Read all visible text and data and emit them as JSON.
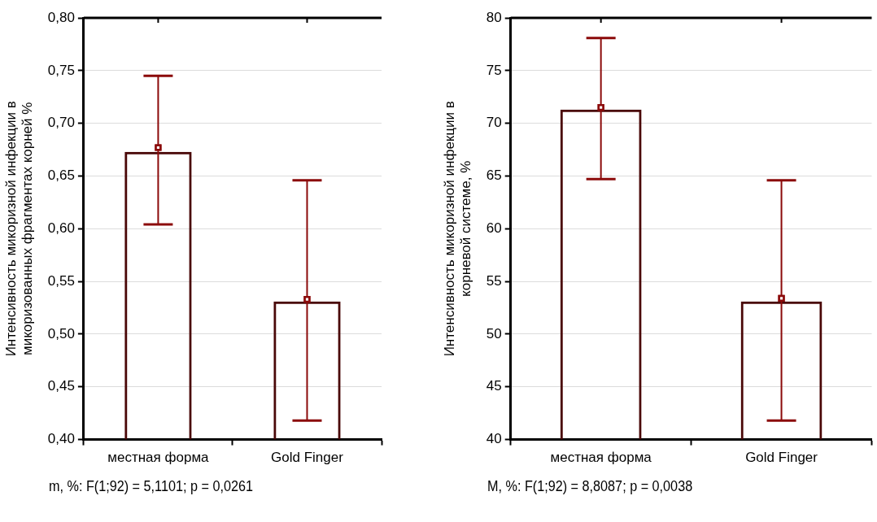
{
  "chart_data": [
    {
      "type": "bar",
      "ylabel": "Интенсивность микоризной инфекции в микоризованных фрагментах корней %",
      "categories": [
        "местная форма",
        "Gold Finger"
      ],
      "ylim": [
        0.4,
        0.8
      ],
      "yticks": [
        {
          "value": 0.4,
          "label": "0,40"
        },
        {
          "value": 0.45,
          "label": "0,45"
        },
        {
          "value": 0.5,
          "label": "0,50"
        },
        {
          "value": 0.55,
          "label": "0,55"
        },
        {
          "value": 0.6,
          "label": "0,60"
        },
        {
          "value": 0.65,
          "label": "0,65"
        },
        {
          "value": 0.7,
          "label": "0,70"
        },
        {
          "value": 0.75,
          "label": "0,75"
        },
        {
          "value": 0.8,
          "label": "0,80"
        }
      ],
      "grid": "y",
      "legend": false,
      "annotations": [
        "m, %:  F(1;92) = 5,1101; p = 0,0261"
      ],
      "series": [
        {
          "color": "#4a0808",
          "values": [
            0.673,
            0.531
          ]
        },
        {
          "type": "scatter",
          "color": "#8b0a0a",
          "marker": "square",
          "x": [
            "местная форма",
            "Gold Finger"
          ],
          "values": [
            0.677,
            0.533
          ],
          "errors": [
            [
              0.604,
              0.745
            ],
            [
              0.418,
              0.646
            ]
          ]
        }
      ]
    },
    {
      "type": "bar",
      "ylabel": "Интенсивность микоризной инфекции в корневой системе, %",
      "categories": [
        "местная форма",
        "Gold Finger"
      ],
      "ylim": [
        40,
        80
      ],
      "yticks": [
        40,
        45,
        50,
        55,
        60,
        65,
        70,
        75,
        80
      ],
      "grid": "y",
      "legend": false,
      "annotations": [
        "M, %:  F(1;92) = 8,8087; p = 0,0038"
      ],
      "series": [
        {
          "color": "#4a0808",
          "values": [
            71.3,
            53.1
          ]
        },
        {
          "type": "scatter",
          "color": "#8b0a0a",
          "marker": "square",
          "x": [
            "местная форма",
            "Gold Finger"
          ],
          "values": [
            71.5,
            53.4
          ],
          "errors": [
            [
              64.7,
              78.1
            ],
            [
              41.8,
              64.6
            ]
          ]
        }
      ]
    }
  ]
}
